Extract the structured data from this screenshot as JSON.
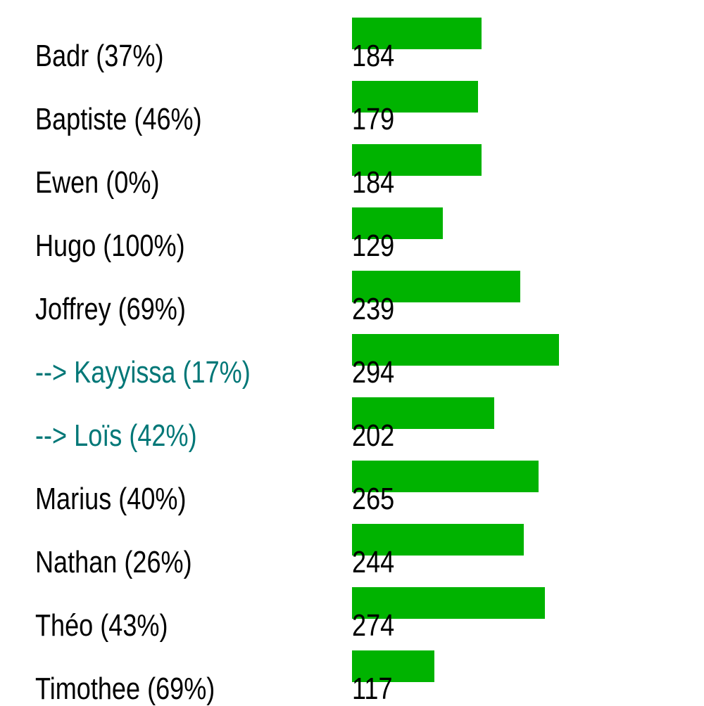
{
  "chart_data": {
    "type": "bar",
    "orientation": "horizontal",
    "categories": [
      "Badr (37%)",
      "Baptiste (46%)",
      "Ewen (0%)",
      "Hugo (100%)",
      "Joffrey (69%)",
      "--> Kayyissa (17%)",
      "--> Loïs (42%)",
      "Marius (40%)",
      "Nathan (26%)",
      "Théo (43%)",
      "Timothee (69%)"
    ],
    "values": [
      184,
      179,
      184,
      129,
      239,
      294,
      202,
      265,
      244,
      274,
      117
    ],
    "value_labels": [
      "184",
      "179",
      "184",
      "129",
      "239",
      "294",
      "202",
      "265",
      "244",
      "274",
      "117"
    ],
    "highlighted": [
      5,
      6
    ],
    "colors": {
      "bar": "#00b300",
      "label": "#000000",
      "highlight_label": "#007777"
    },
    "grid": false,
    "legend": "none"
  }
}
